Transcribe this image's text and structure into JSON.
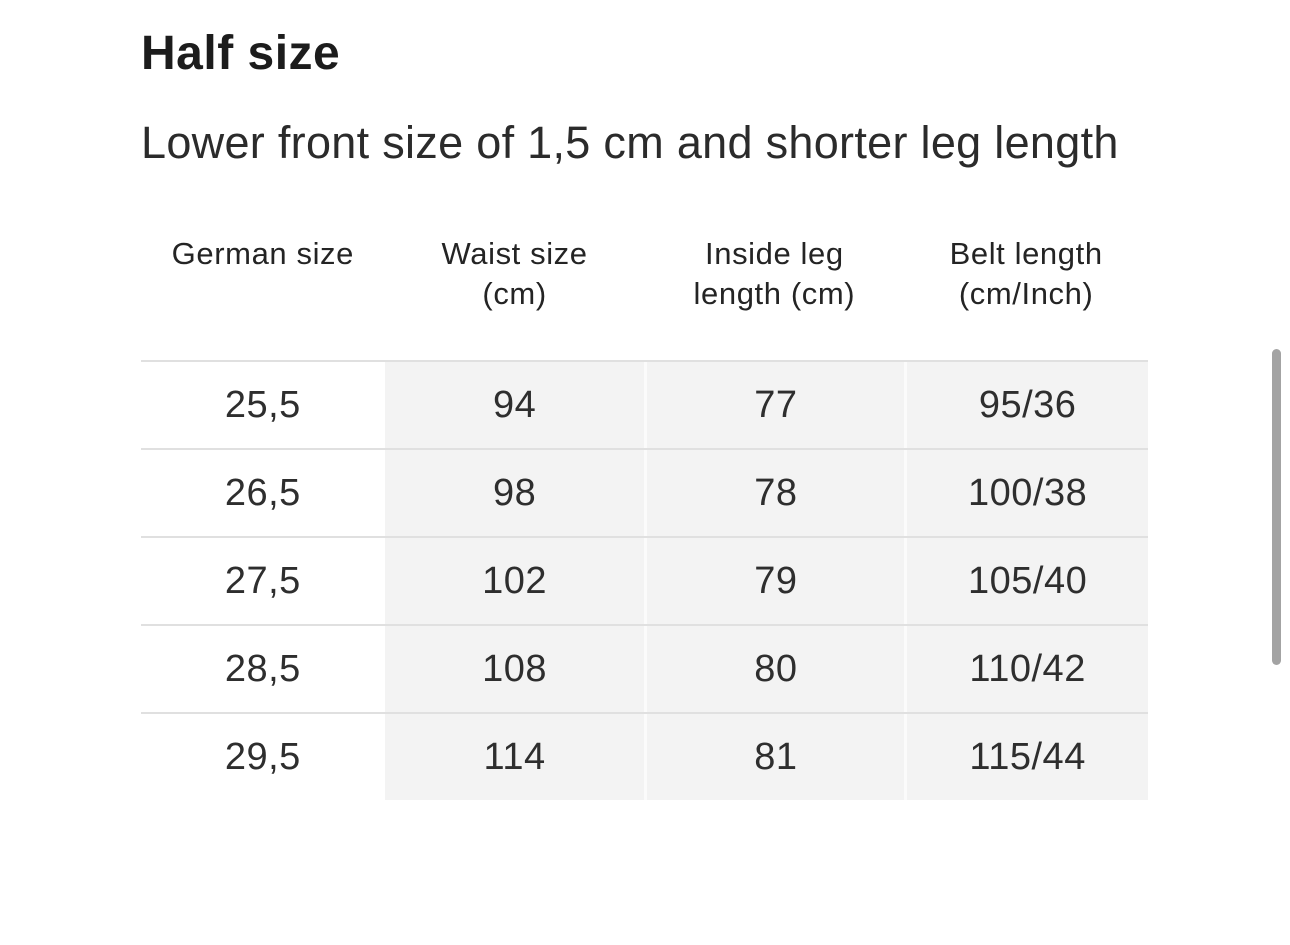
{
  "page": {
    "title": "Half size",
    "subtitle": "Lower front size of 1,5 cm and shorter leg length"
  },
  "table": {
    "columns": [
      {
        "line1": "German size",
        "line2": ""
      },
      {
        "line1": "Waist size",
        "line2": "(cm)"
      },
      {
        "line1": "Inside leg",
        "line2": "length (cm)"
      },
      {
        "line1": "Belt length",
        "line2": "(cm/Inch)"
      }
    ],
    "rows": [
      [
        "25,5",
        "94",
        "77",
        "95/36"
      ],
      [
        "26,5",
        "98",
        "78",
        "100/38"
      ],
      [
        "27,5",
        "102",
        "79",
        "105/40"
      ],
      [
        "28,5",
        "108",
        "80",
        "110/42"
      ],
      [
        "29,5",
        "114",
        "81",
        "115/44"
      ]
    ]
  },
  "theme": {
    "title_color": "#1c1c1c",
    "body_text_color": "#2b2b2b",
    "cell_background": "#f3f3f3",
    "row_separator": "#e0e0e0",
    "scrollbar_color": "#a3a3a3"
  },
  "scrollbar": {
    "orientation": "vertical"
  }
}
